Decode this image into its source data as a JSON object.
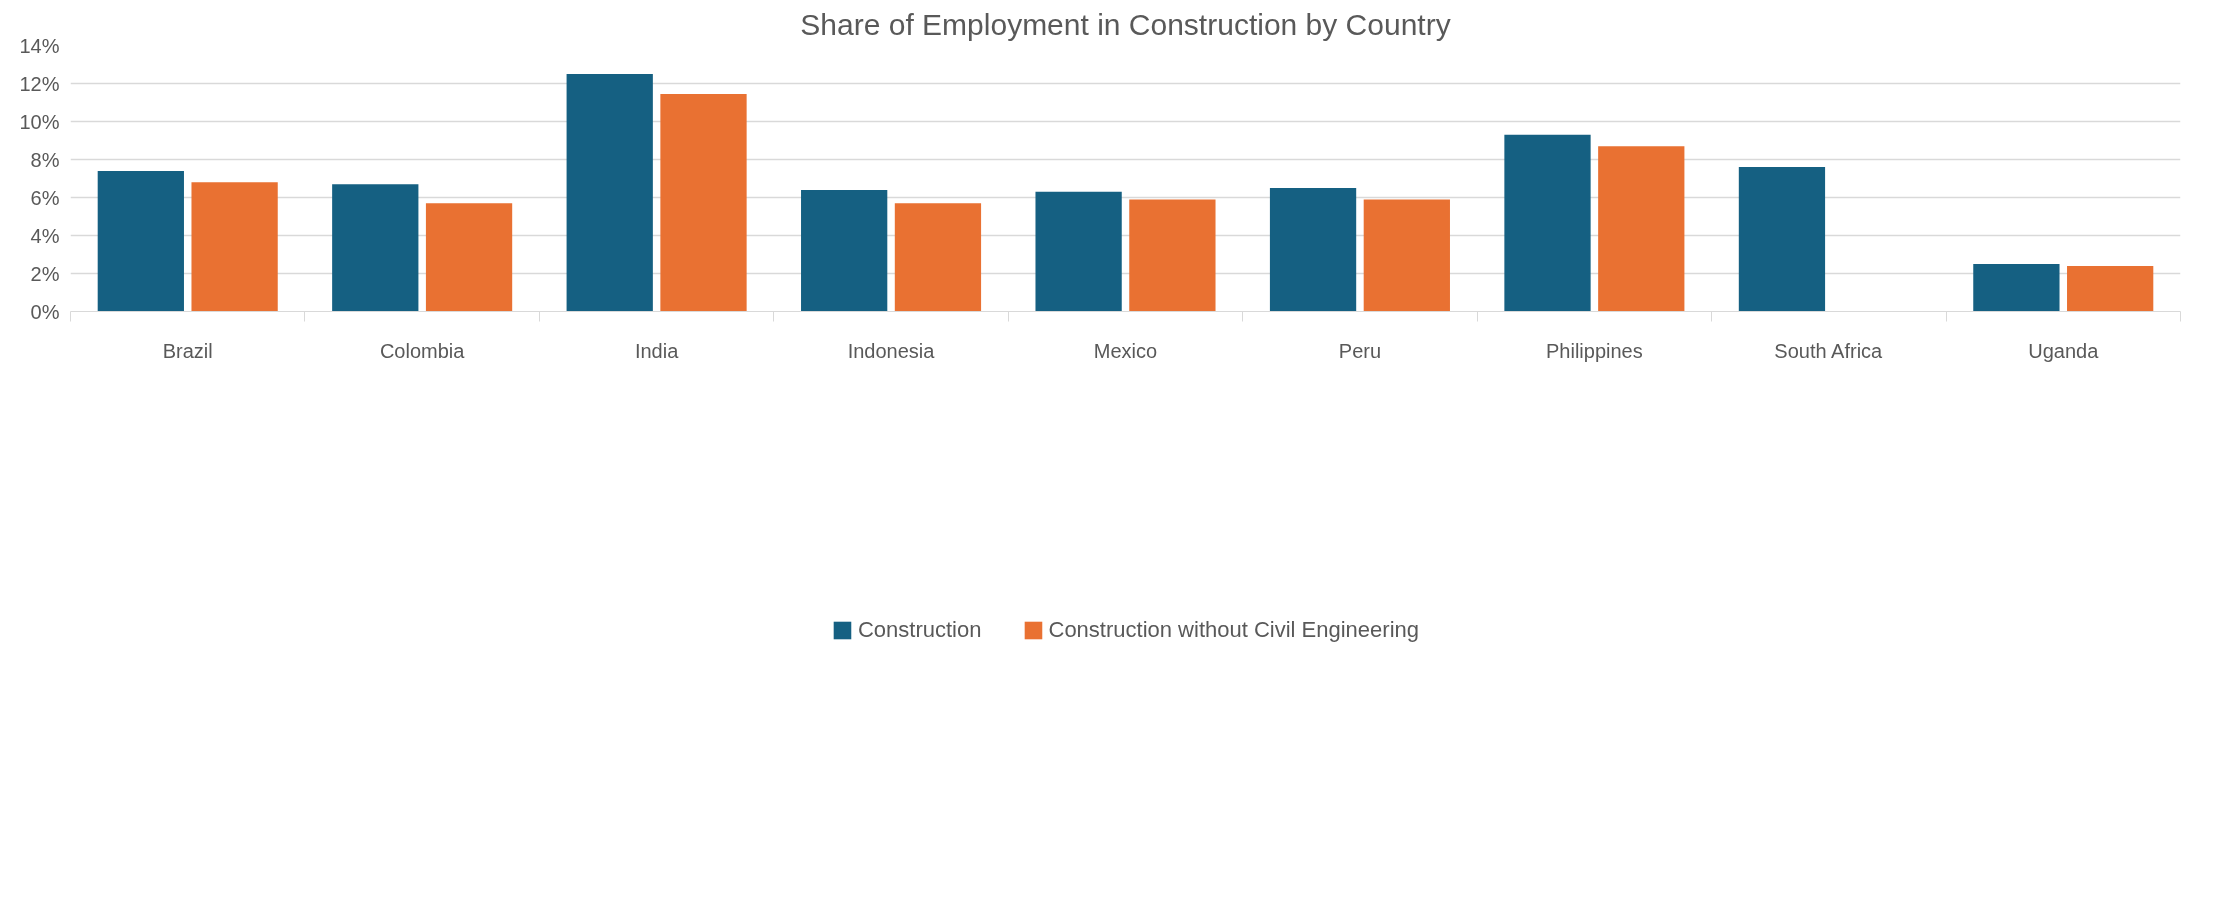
{
  "chart_data": {
    "type": "bar",
    "title": "Share of Employment in Construction by Country",
    "categories": [
      "Brazil",
      "Colombia",
      "India",
      "Indonesia",
      "Mexico",
      "Peru",
      "Philippines",
      "South Africa",
      "Uganda"
    ],
    "series": [
      {
        "name": "Construction",
        "color": "#156082",
        "values": [
          7.4,
          6.7,
          12.5,
          6.4,
          6.3,
          6.5,
          9.3,
          7.6,
          2.5
        ]
      },
      {
        "name": "Construction without Civil Engineering",
        "color": "#e97132",
        "values": [
          6.8,
          5.7,
          11.45,
          5.7,
          5.9,
          5.9,
          8.7,
          null,
          2.4
        ]
      }
    ],
    "ylim": [
      0,
      14
    ],
    "yticks": [
      {
        "value": 0,
        "label": "0%"
      },
      {
        "value": 2,
        "label": "2%"
      },
      {
        "value": 4,
        "label": "4%"
      },
      {
        "value": 6,
        "label": "6%"
      },
      {
        "value": 8,
        "label": "8%"
      },
      {
        "value": 10,
        "label": "10%"
      },
      {
        "value": 12,
        "label": "12%"
      },
      {
        "value": 14,
        "label": "14%"
      }
    ],
    "grid": "y",
    "legend": "bottom"
  }
}
